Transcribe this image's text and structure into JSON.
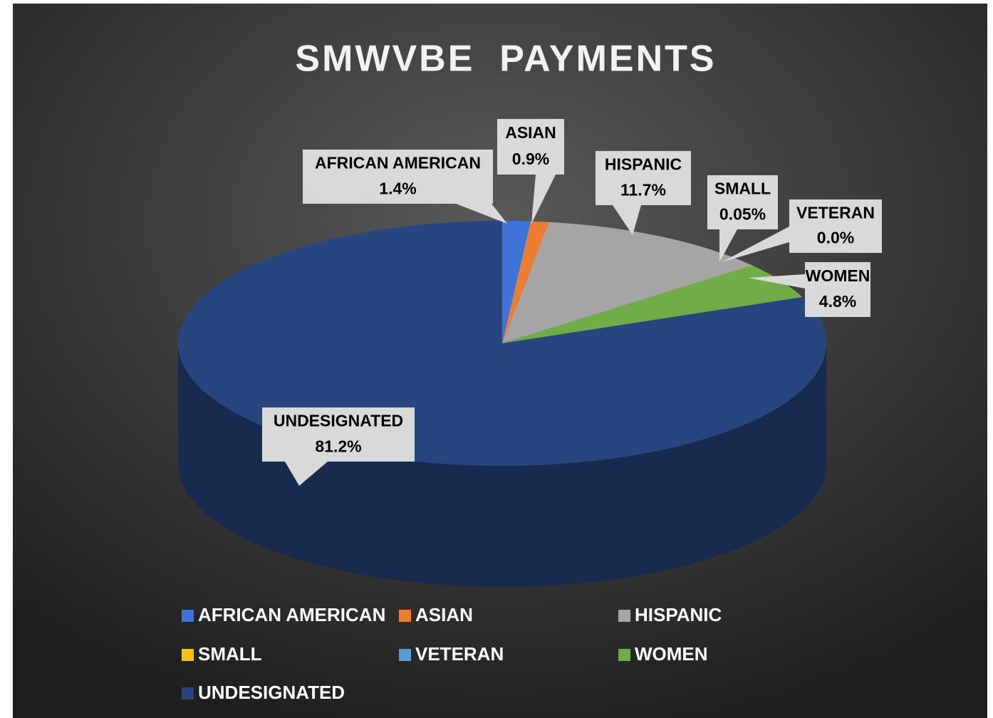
{
  "chart_data": {
    "type": "pie",
    "title": "SMWVBE  PAYMENTS",
    "categories": [
      "AFRICAN AMERICAN",
      "ASIAN",
      "HISPANIC",
      "SMALL",
      "VETERAN",
      "WOMEN",
      "UNDESIGNATED"
    ],
    "values": [
      1.4,
      0.9,
      11.7,
      0.05,
      0.0,
      4.8,
      81.2
    ],
    "value_labels": [
      "1.4%",
      "0.9%",
      "11.7%",
      "0.05%",
      "0.0%",
      "4.8%",
      "81.2%"
    ],
    "colors": [
      "#3f74d6",
      "#ed7d31",
      "#a5a5a5",
      "#ffc000",
      "#5b9bd5",
      "#70ad47",
      "#27457f"
    ],
    "legend": "bottom"
  }
}
